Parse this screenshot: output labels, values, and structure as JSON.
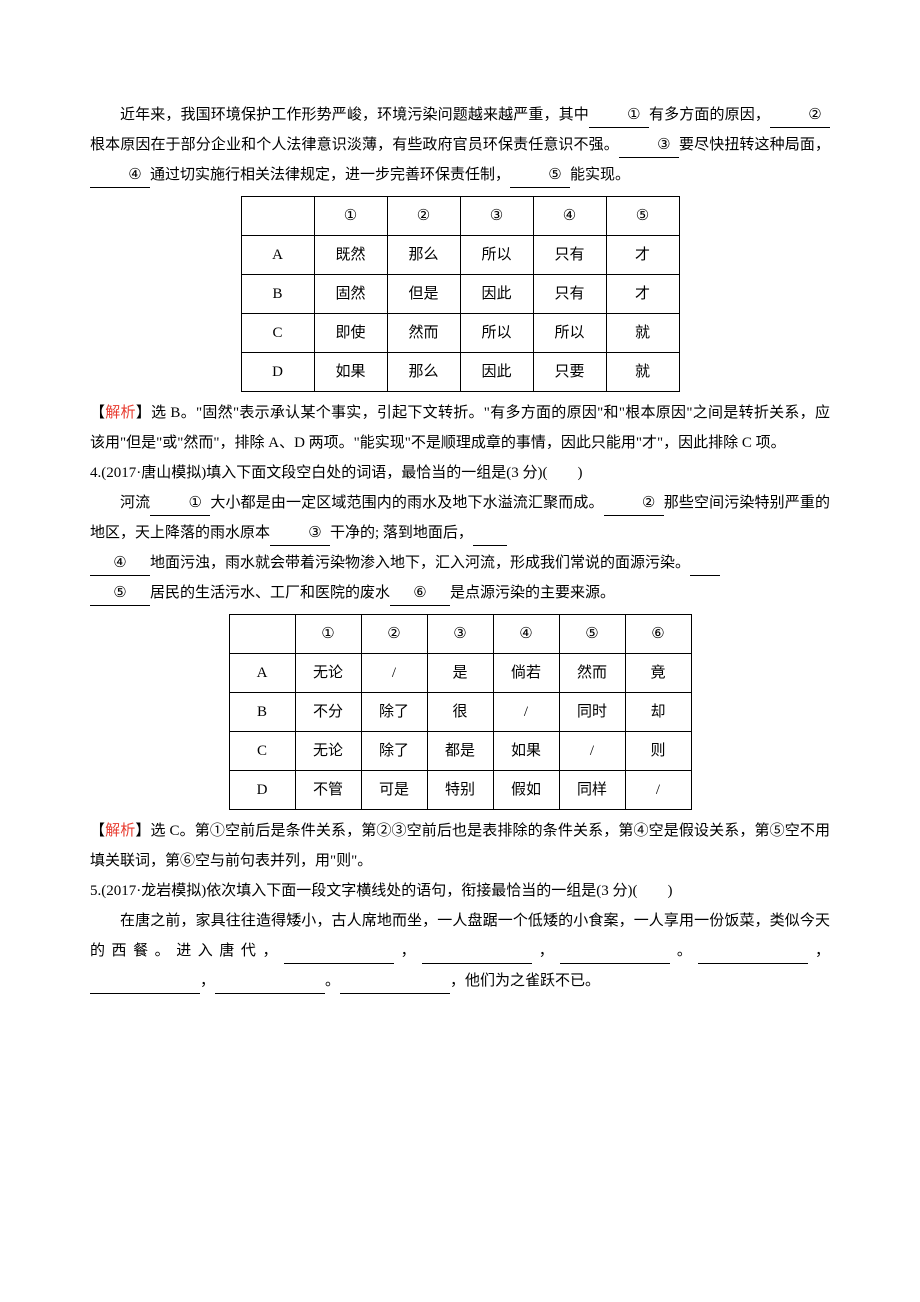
{
  "q3": {
    "para": "近年来，我国环境保护工作形势严峻，环境污染问题越来越严重，其中",
    "b1": "①",
    "t1": "有多方面的原因，",
    "b2": "②",
    "t2": "根本原因在于部分企业和个人法律意识淡薄，有些政府官员环保责任意识不强。",
    "b3": "③",
    "t3": "要尽快扭转这种局面，",
    "b4": "④",
    "t4": "通过切实施行相关法律规定，进一步完善环保责任制，",
    "b5": "⑤",
    "t5": "能实现。",
    "table": {
      "headers": [
        "",
        "①",
        "②",
        "③",
        "④",
        "⑤"
      ],
      "rows": [
        [
          "A",
          "既然",
          "那么",
          "所以",
          "只有",
          "才"
        ],
        [
          "B",
          "固然",
          "但是",
          "因此",
          "只有",
          "才"
        ],
        [
          "C",
          "即使",
          "然而",
          "所以",
          "所以",
          "就"
        ],
        [
          "D",
          "如果",
          "那么",
          "因此",
          "只要",
          "就"
        ]
      ]
    },
    "analysis_label": "【",
    "analysis_word": "解析",
    "analysis_label2": "】",
    "analysis": "选 B。\"固然\"表示承认某个事实，引起下文转折。\"有多方面的原因\"和\"根本原因\"之间是转折关系，应该用\"但是\"或\"然而\"，排除 A、D 两项。\"能实现\"不是顺理成章的事情，因此只能用\"才\"，因此排除 C 项。"
  },
  "q4": {
    "stem": "4.(2017·唐山模拟)填入下面文段空白处的词语，最恰当的一组是(3 分)(　　)",
    "p1": "河流",
    "b1": "①",
    "t1": "大小都是由一定区域范围内的雨水及地下水溢流汇聚而成。",
    "b2": "②",
    "t2": "那些空间污染特别严重的地区，天上降落的雨水原本",
    "b3": "③",
    "t3": "干净的; 落到地面后，",
    "b4": "④",
    "t4": "地面污浊，雨水就会带着污染物渗入地下，汇入河流，形成我们常说的面源污染。",
    "b5": "⑤",
    "t5": "居民的生活污水、工厂和医院的废水",
    "b6": "⑥",
    "t6": "是点源污染的主要来源。",
    "table": {
      "headers": [
        "",
        "①",
        "②",
        "③",
        "④",
        "⑤",
        "⑥"
      ],
      "rows": [
        [
          "A",
          "无论",
          "/",
          "是",
          "倘若",
          "然而",
          "竟"
        ],
        [
          "B",
          "不分",
          "除了",
          "很",
          "/",
          "同时",
          "却"
        ],
        [
          "C",
          "无论",
          "除了",
          "都是",
          "如果",
          "/",
          "则"
        ],
        [
          "D",
          "不管",
          "可是",
          "特别",
          "假如",
          "同样",
          "/"
        ]
      ]
    },
    "analysis_label": "【",
    "analysis_word": "解析",
    "analysis_label2": "】",
    "analysis": "选 C。第①空前后是条件关系，第②③空前后也是表排除的条件关系，第④空是假设关系，第⑤空不用填关联词，第⑥空与前句表并列，用\"则\"。"
  },
  "q5": {
    "stem": "5.(2017·龙岩模拟)依次填入下面一段文字横线处的语句，衔接最恰当的一组是(3 分)(　　)",
    "p1": "在唐之前，家具往往造得矮小，古人席地而坐，一人盘踞一个低矮的小食案，一人享用一份饭菜，类似今天的西餐。进入唐代，",
    "c1": "，",
    "c2": "，",
    "c3": "。",
    "c4": "，",
    "c5": "，",
    "c6": "。",
    "t_last": "，他们为之雀跃不已。"
  }
}
